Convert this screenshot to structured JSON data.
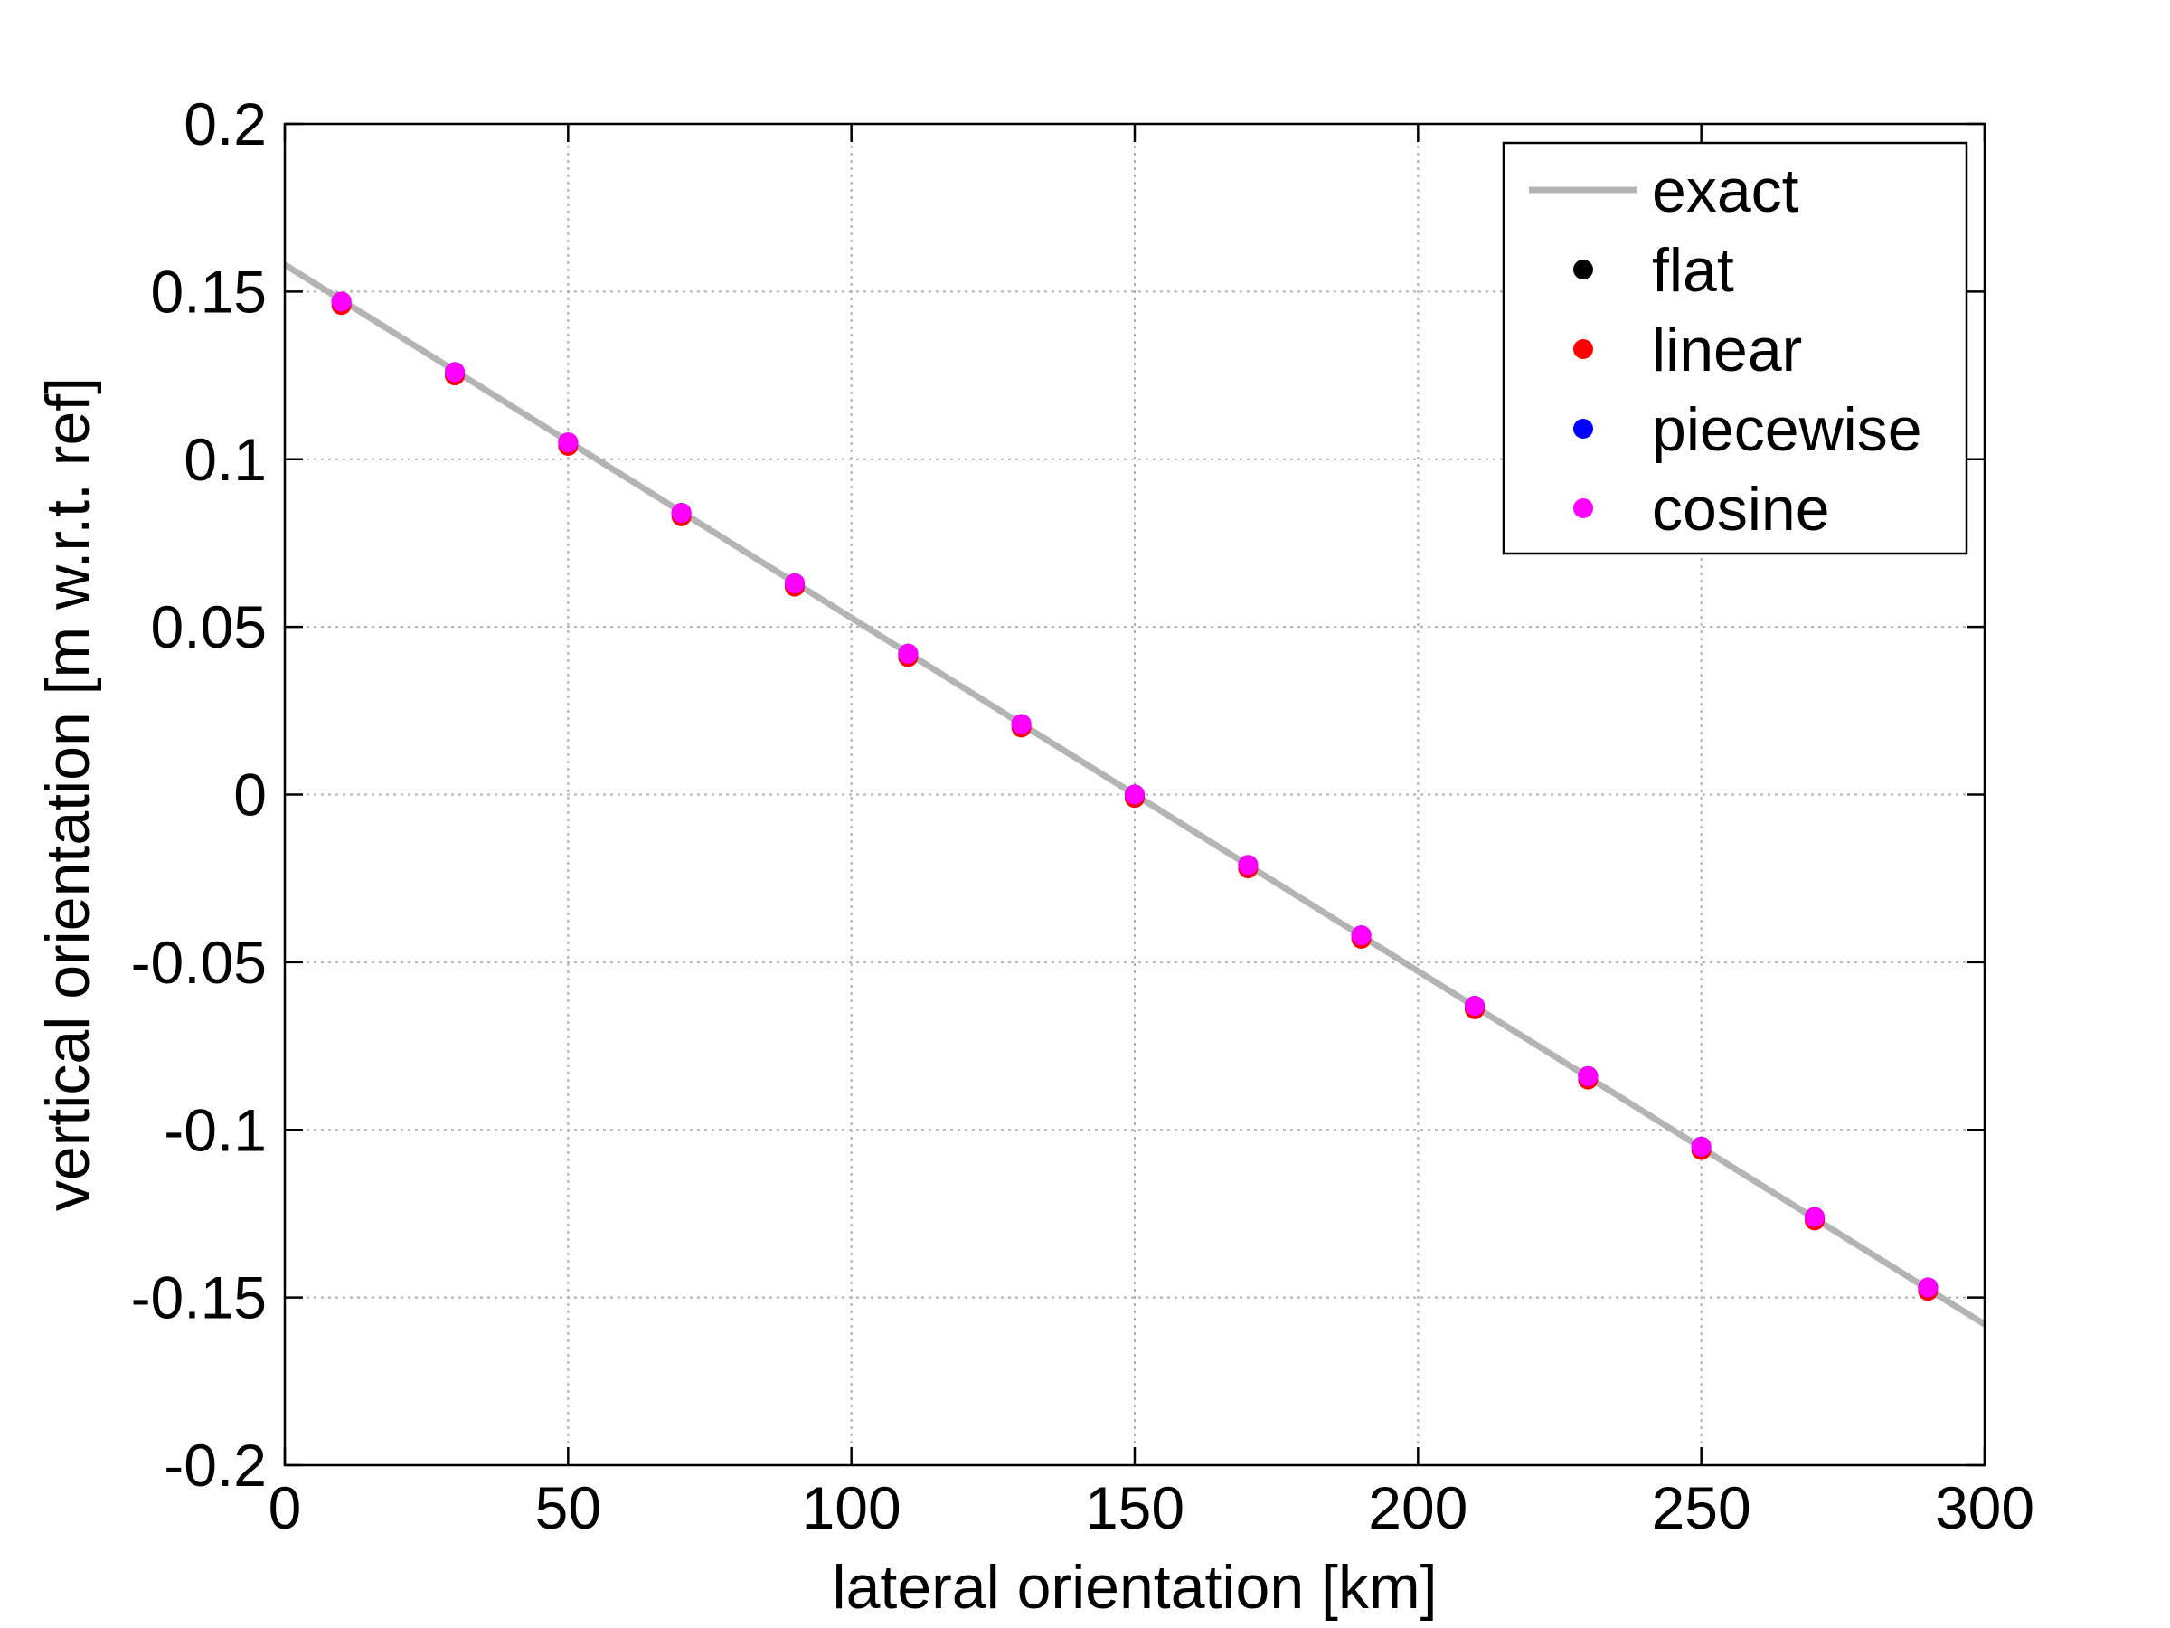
{
  "chart_data": {
    "type": "scatter",
    "title": "",
    "xlabel": "lateral orientation [km]",
    "ylabel": "vertical orientation [m w.r.t. ref]",
    "xlim": [
      0,
      300
    ],
    "ylim": [
      -0.2,
      0.2
    ],
    "xticks": [
      0,
      50,
      100,
      150,
      200,
      250,
      300
    ],
    "xtick_labels": [
      "0",
      "50",
      "100",
      "150",
      "200",
      "250",
      "300"
    ],
    "yticks": [
      0.2,
      0.15,
      0.1,
      0.05,
      0,
      -0.05,
      -0.1,
      -0.15,
      -0.2
    ],
    "ytick_labels": [
      "0.2",
      "0.15",
      "0.1",
      "0.05",
      "0",
      "-0.05",
      "-0.1",
      "-0.15",
      "-0.2"
    ],
    "grid": true,
    "legend_position": "top-right",
    "series": [
      {
        "name": "exact",
        "kind": "line",
        "color": "#b4b4b4",
        "x": [
          0,
          300
        ],
        "y": [
          0.158,
          -0.158
        ]
      },
      {
        "name": "flat",
        "kind": "scatter",
        "color": "#000000",
        "x": [
          10,
          30,
          50,
          70,
          90,
          110,
          130,
          150,
          170,
          190,
          210,
          230,
          250,
          270,
          290
        ],
        "y": [
          0.147,
          0.126,
          0.105,
          0.084,
          0.063,
          0.042,
          0.021,
          0.0,
          -0.021,
          -0.042,
          -0.063,
          -0.084,
          -0.105,
          -0.126,
          -0.147
        ]
      },
      {
        "name": "linear",
        "kind": "scatter",
        "color": "#ff0000",
        "x": [
          10,
          30,
          50,
          70,
          90,
          110,
          130,
          150,
          170,
          190,
          210,
          230,
          250,
          270,
          290
        ],
        "y": [
          0.146,
          0.125,
          0.104,
          0.083,
          0.062,
          0.041,
          0.02,
          -0.001,
          -0.022,
          -0.043,
          -0.064,
          -0.085,
          -0.106,
          -0.127,
          -0.148
        ]
      },
      {
        "name": "piecewise",
        "kind": "scatter",
        "color": "#0000ff",
        "x": [
          10,
          30,
          50,
          70,
          90,
          110,
          130,
          150,
          170,
          190,
          210,
          230,
          250,
          270,
          290
        ],
        "y": [
          0.147,
          0.126,
          0.105,
          0.084,
          0.063,
          0.042,
          0.021,
          0.0,
          -0.021,
          -0.042,
          -0.063,
          -0.084,
          -0.105,
          -0.126,
          -0.147
        ]
      },
      {
        "name": "cosine",
        "kind": "scatter",
        "color": "#ff00ff",
        "x": [
          10,
          30,
          50,
          70,
          90,
          110,
          130,
          150,
          170,
          190,
          210,
          230,
          250,
          270,
          290
        ],
        "y": [
          0.147,
          0.126,
          0.105,
          0.084,
          0.063,
          0.042,
          0.021,
          0.0,
          -0.021,
          -0.042,
          -0.063,
          -0.084,
          -0.105,
          -0.126,
          -0.147
        ]
      }
    ]
  }
}
